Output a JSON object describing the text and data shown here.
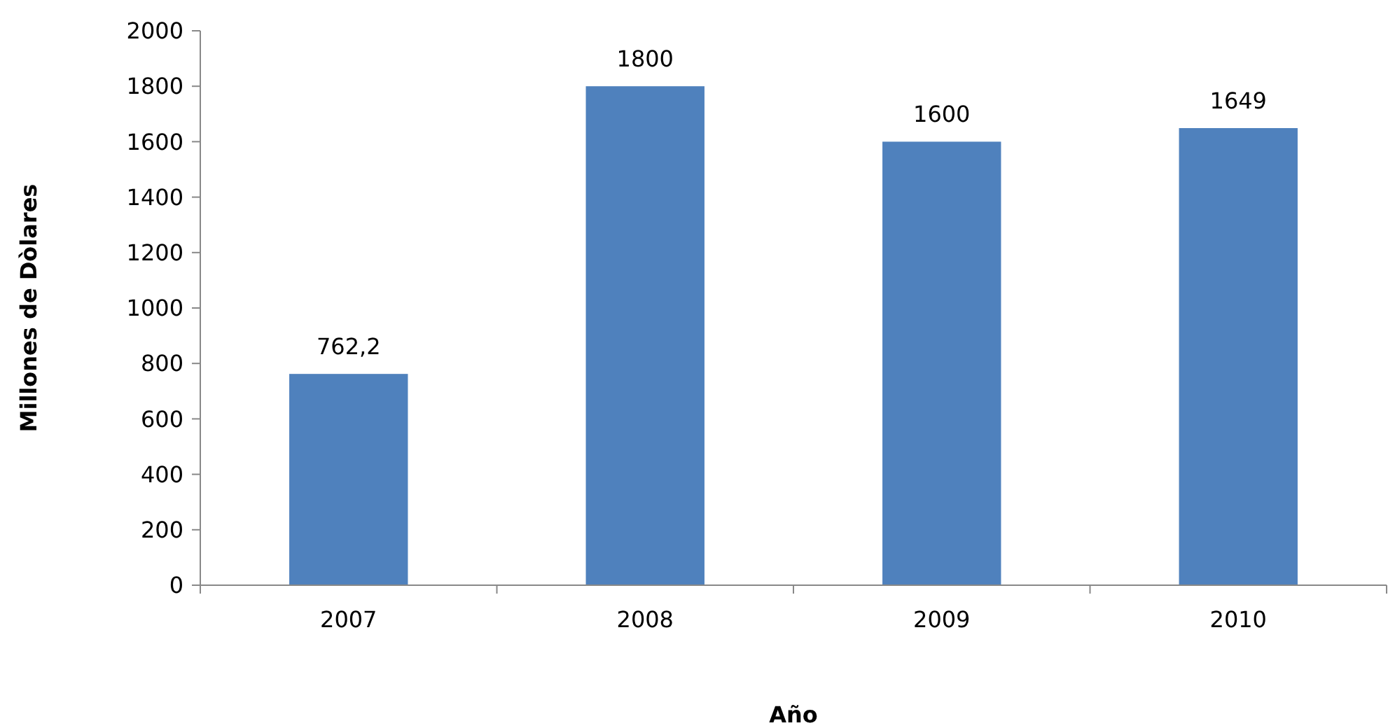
{
  "chart_data": {
    "type": "bar",
    "xlabel": "Año",
    "ylabel": "Millones de Dòlares",
    "categories": [
      "2007",
      "2008",
      "2009",
      "2010"
    ],
    "values": [
      762.2,
      1800,
      1600,
      1649
    ],
    "value_labels": [
      "762,2",
      "1800",
      "1600",
      "1649"
    ],
    "color": "#4f81bd",
    "ylim": [
      0,
      2000
    ],
    "yticks": [
      0,
      200,
      400,
      600,
      800,
      1000,
      1200,
      1400,
      1600,
      1800,
      2000
    ],
    "grid": false
  }
}
